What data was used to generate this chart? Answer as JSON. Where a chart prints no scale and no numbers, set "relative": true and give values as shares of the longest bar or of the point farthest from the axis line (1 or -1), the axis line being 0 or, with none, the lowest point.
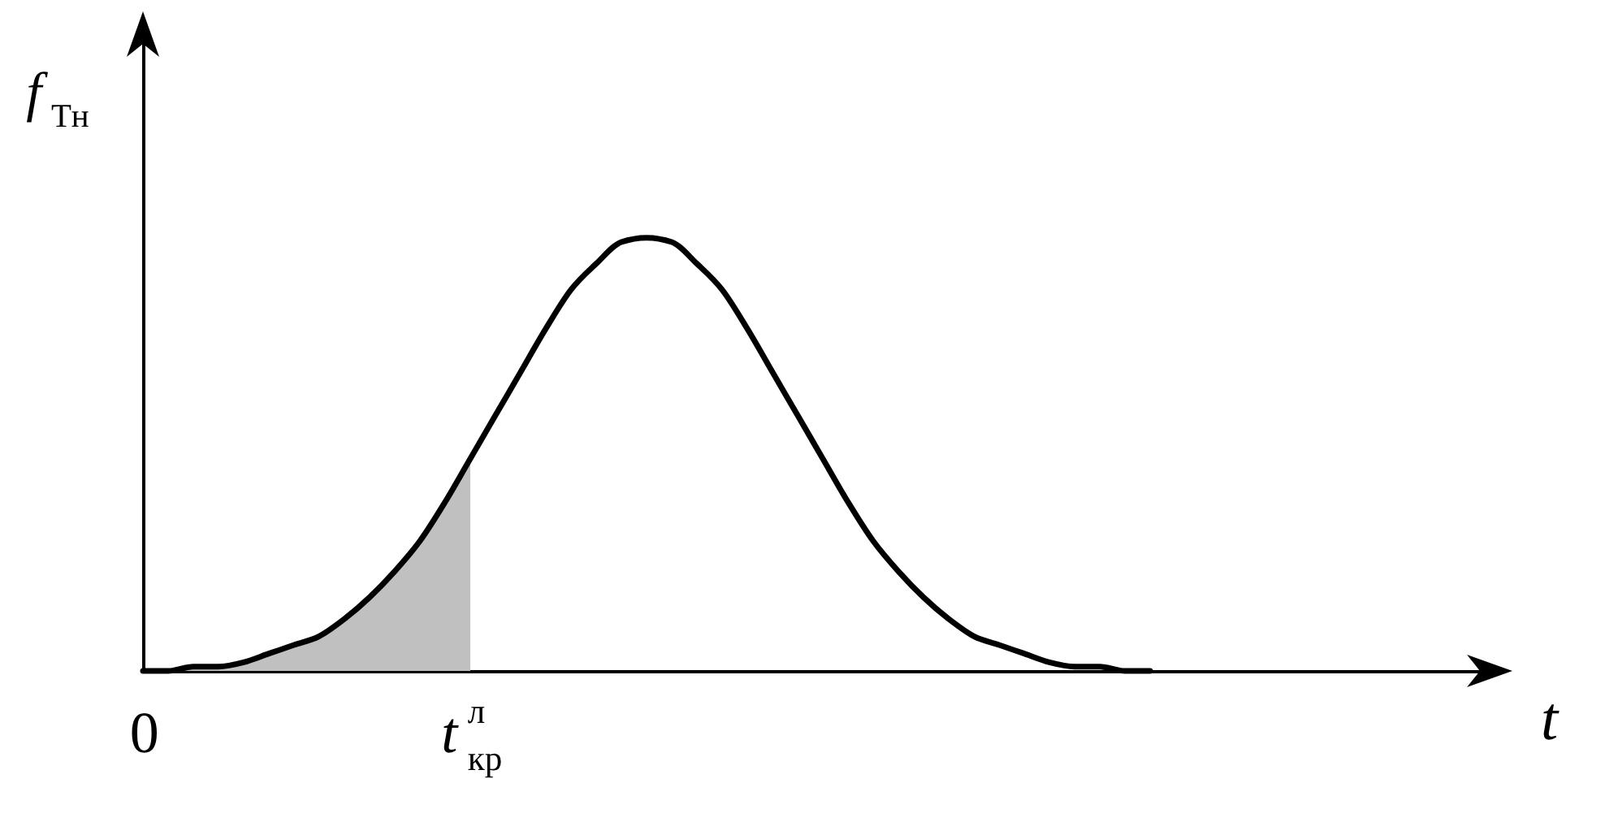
{
  "chart_data": {
    "type": "line",
    "relative": true,
    "xlabel": "t",
    "ylabel": "f$_{Tн}$",
    "categories": [
      "0",
      null,
      null,
      null,
      null,
      null,
      null,
      null,
      null,
      null,
      null,
      null,
      null,
      "t$^{л}$$_{кр}$",
      null,
      null,
      null,
      null,
      null,
      null,
      null,
      null,
      null,
      null,
      null,
      null,
      null,
      null,
      null,
      null,
      null,
      null,
      null,
      null,
      null,
      null,
      null,
      null,
      null,
      null,
      null,
      null,
      null,
      null,
      null,
      null,
      null,
      null,
      null,
      null,
      null,
      null,
      null,
      null,
      null
    ],
    "series": [
      {
        "type": "area",
        "color": "#c0c0c0",
        "values": [
          0.0,
          0.0,
          0.01,
          0.01,
          0.02,
          0.04,
          0.06,
          0.08,
          0.12,
          0.17,
          0.23,
          0.3,
          0.39,
          0.49,
          null,
          null,
          null,
          null,
          null,
          null,
          null,
          null,
          null,
          null,
          null,
          null,
          null,
          null,
          null,
          null,
          null,
          null,
          null,
          null,
          null,
          null,
          null,
          null,
          null,
          null,
          null,
          null,
          null,
          null,
          null,
          null,
          null,
          null,
          null,
          null,
          null,
          null,
          null,
          null,
          null
        ]
      },
      {
        "type": "line",
        "color": "#000000",
        "values": [
          0.0,
          0.0,
          0.01,
          0.01,
          0.02,
          0.04,
          0.06,
          0.08,
          0.12,
          0.17,
          0.23,
          0.3,
          0.39,
          0.49,
          0.59,
          0.69,
          0.79,
          0.88,
          0.94,
          0.99,
          1,
          0.99,
          0.94,
          0.88,
          0.79,
          0.69,
          0.59,
          0.49,
          0.39,
          0.3,
          0.23,
          0.17,
          0.12,
          0.08,
          0.06,
          0.04,
          0.02,
          0.01,
          0.01,
          0.0,
          0.0,
          null,
          null,
          null,
          null,
          null,
          null,
          null,
          null,
          null,
          null,
          null,
          null,
          null,
          null
        ]
      }
    ]
  }
}
